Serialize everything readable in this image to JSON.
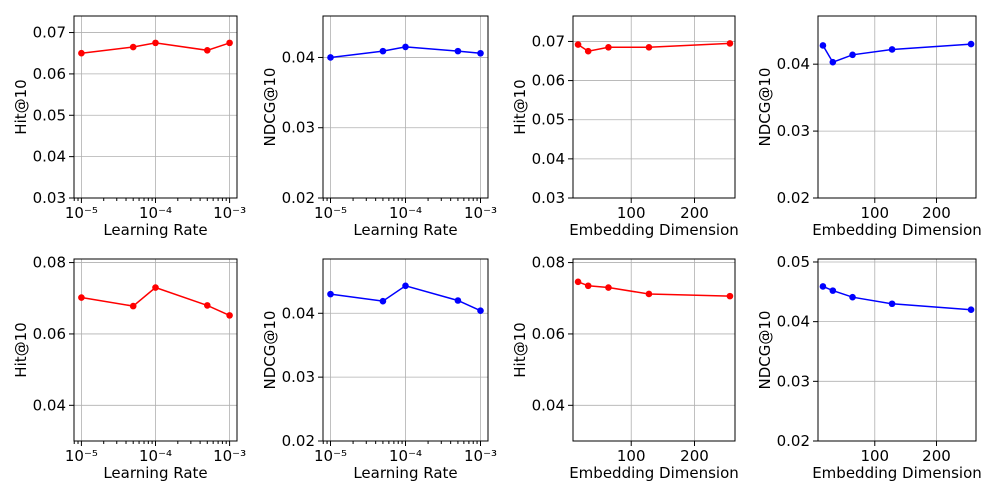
{
  "chart_data": [
    {
      "type": "line",
      "color": "#ff0000",
      "xscale": "log",
      "x": [
        1e-05,
        5e-05,
        0.0001,
        0.0005,
        0.001
      ],
      "values": [
        0.065,
        0.0665,
        0.0675,
        0.0657,
        0.0675
      ],
      "ylim": [
        0.03,
        0.074
      ],
      "yticks": [
        "0.03",
        "0.04",
        "0.05",
        "0.06",
        "0.07"
      ],
      "ytick_values": [
        0.03,
        0.04,
        0.05,
        0.06,
        0.07
      ],
      "xticks": [
        "10⁻⁵",
        "10⁻⁴",
        "10⁻³"
      ],
      "xtick_values": [
        1e-05,
        0.0001,
        0.001
      ],
      "xlabel": "Learning Rate",
      "ylabel": "Hit@10"
    },
    {
      "type": "line",
      "color": "#0000ff",
      "xscale": "log",
      "x": [
        1e-05,
        5e-05,
        0.0001,
        0.0005,
        0.001
      ],
      "values": [
        0.04,
        0.0409,
        0.0415,
        0.0409,
        0.0406
      ],
      "ylim": [
        0.02,
        0.0459
      ],
      "yticks": [
        "0.02",
        "0.03",
        "0.04"
      ],
      "ytick_values": [
        0.02,
        0.03,
        0.04
      ],
      "xticks": [
        "10⁻⁵",
        "10⁻⁴",
        "10⁻³"
      ],
      "xtick_values": [
        1e-05,
        0.0001,
        0.001
      ],
      "xlabel": "Learning Rate",
      "ylabel": "NDCG@10"
    },
    {
      "type": "line",
      "color": "#ff0000",
      "xscale": "linear",
      "x": [
        16,
        32,
        64,
        128,
        256
      ],
      "values": [
        0.0692,
        0.0675,
        0.0685,
        0.0685,
        0.0695
      ],
      "ylim": [
        0.03,
        0.0765
      ],
      "xlim": [
        8,
        264
      ],
      "yticks": [
        "0.03",
        "0.04",
        "0.05",
        "0.06",
        "0.07"
      ],
      "ytick_values": [
        0.03,
        0.04,
        0.05,
        0.06,
        0.07
      ],
      "xticks": [
        "100",
        "200"
      ],
      "xtick_values": [
        100,
        200
      ],
      "xlabel": "Embedding Dimension",
      "ylabel": "Hit@10"
    },
    {
      "type": "line",
      "color": "#0000ff",
      "xscale": "linear",
      "x": [
        16,
        32,
        64,
        128,
        256
      ],
      "values": [
        0.0428,
        0.0403,
        0.0414,
        0.0422,
        0.043
      ],
      "ylim": [
        0.02,
        0.0472
      ],
      "xlim": [
        8,
        264
      ],
      "yticks": [
        "0.02",
        "0.03",
        "0.04"
      ],
      "ytick_values": [
        0.02,
        0.03,
        0.04
      ],
      "xticks": [
        "100",
        "200"
      ],
      "xtick_values": [
        100,
        200
      ],
      "xlabel": "Embedding Dimension",
      "ylabel": "NDCG@10"
    },
    {
      "type": "line",
      "color": "#ff0000",
      "xscale": "log",
      "x": [
        1e-05,
        5e-05,
        0.0001,
        0.0005,
        0.001
      ],
      "values": [
        0.0702,
        0.0678,
        0.073,
        0.068,
        0.0652
      ],
      "ylim": [
        0.03,
        0.081
      ],
      "yticks": [
        "0.04",
        "0.06",
        "0.08"
      ],
      "ytick_values": [
        0.04,
        0.06,
        0.08
      ],
      "xticks": [
        "10⁻⁵",
        "10⁻⁴",
        "10⁻³"
      ],
      "xtick_values": [
        1e-05,
        0.0001,
        0.001
      ],
      "xlabel": "Learning Rate",
      "ylabel": "Hit@10"
    },
    {
      "type": "line",
      "color": "#0000ff",
      "xscale": "log",
      "x": [
        1e-05,
        5e-05,
        0.0001,
        0.0005,
        0.001
      ],
      "values": [
        0.043,
        0.0419,
        0.0443,
        0.042,
        0.0404
      ],
      "ylim": [
        0.02,
        0.0485
      ],
      "yticks": [
        "0.02",
        "0.03",
        "0.04"
      ],
      "ytick_values": [
        0.02,
        0.03,
        0.04
      ],
      "xticks": [
        "10⁻⁵",
        "10⁻⁴",
        "10⁻³"
      ],
      "xtick_values": [
        1e-05,
        0.0001,
        0.001
      ],
      "xlabel": "Learning Rate",
      "ylabel": "NDCG@10"
    },
    {
      "type": "line",
      "color": "#ff0000",
      "xscale": "linear",
      "x": [
        16,
        32,
        64,
        128,
        256
      ],
      "values": [
        0.0746,
        0.0735,
        0.073,
        0.0712,
        0.0706
      ],
      "ylim": [
        0.03,
        0.081
      ],
      "xlim": [
        8,
        264
      ],
      "yticks": [
        "0.04",
        "0.06",
        "0.08"
      ],
      "ytick_values": [
        0.04,
        0.06,
        0.08
      ],
      "xticks": [
        "100",
        "200"
      ],
      "xtick_values": [
        100,
        200
      ],
      "xlabel": "Embedding Dimension",
      "ylabel": "Hit@10"
    },
    {
      "type": "line",
      "color": "#0000ff",
      "xscale": "linear",
      "x": [
        16,
        32,
        64,
        128,
        256
      ],
      "values": [
        0.0459,
        0.0452,
        0.0441,
        0.043,
        0.042
      ],
      "ylim": [
        0.02,
        0.0505
      ],
      "xlim": [
        8,
        264
      ],
      "yticks": [
        "0.02",
        "0.03",
        "0.04",
        "0.05"
      ],
      "ytick_values": [
        0.02,
        0.03,
        0.04,
        0.05
      ],
      "xticks": [
        "100",
        "200"
      ],
      "xtick_values": [
        100,
        200
      ],
      "xlabel": "Embedding Dimension",
      "ylabel": "NDCG@10"
    }
  ]
}
